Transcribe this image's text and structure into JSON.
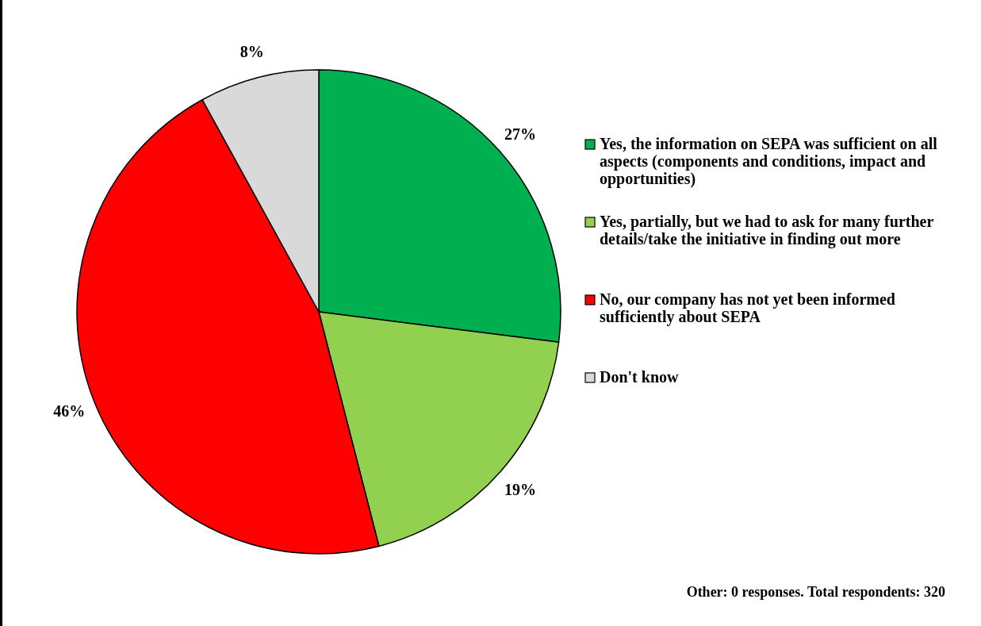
{
  "chart_data": {
    "type": "pie",
    "categories": [
      "Yes, the information on SEPA was sufficient on all aspects (components and conditions, impact and opportunities)",
      "Yes, partially, but we had to ask for many further details/take the initiative in finding out more",
      "No, our company has not yet been informed sufficiently about SEPA",
      "Don't know"
    ],
    "values": [
      27,
      19,
      46,
      8
    ],
    "colors": [
      "#00b050",
      "#92d050",
      "#ff0000",
      "#d9d9d9"
    ],
    "value_labels": [
      "27%",
      "19%",
      "46%",
      "8%"
    ],
    "legend": "right",
    "annotations": [
      "Other: 0 responses. Total respondents: 320"
    ]
  }
}
